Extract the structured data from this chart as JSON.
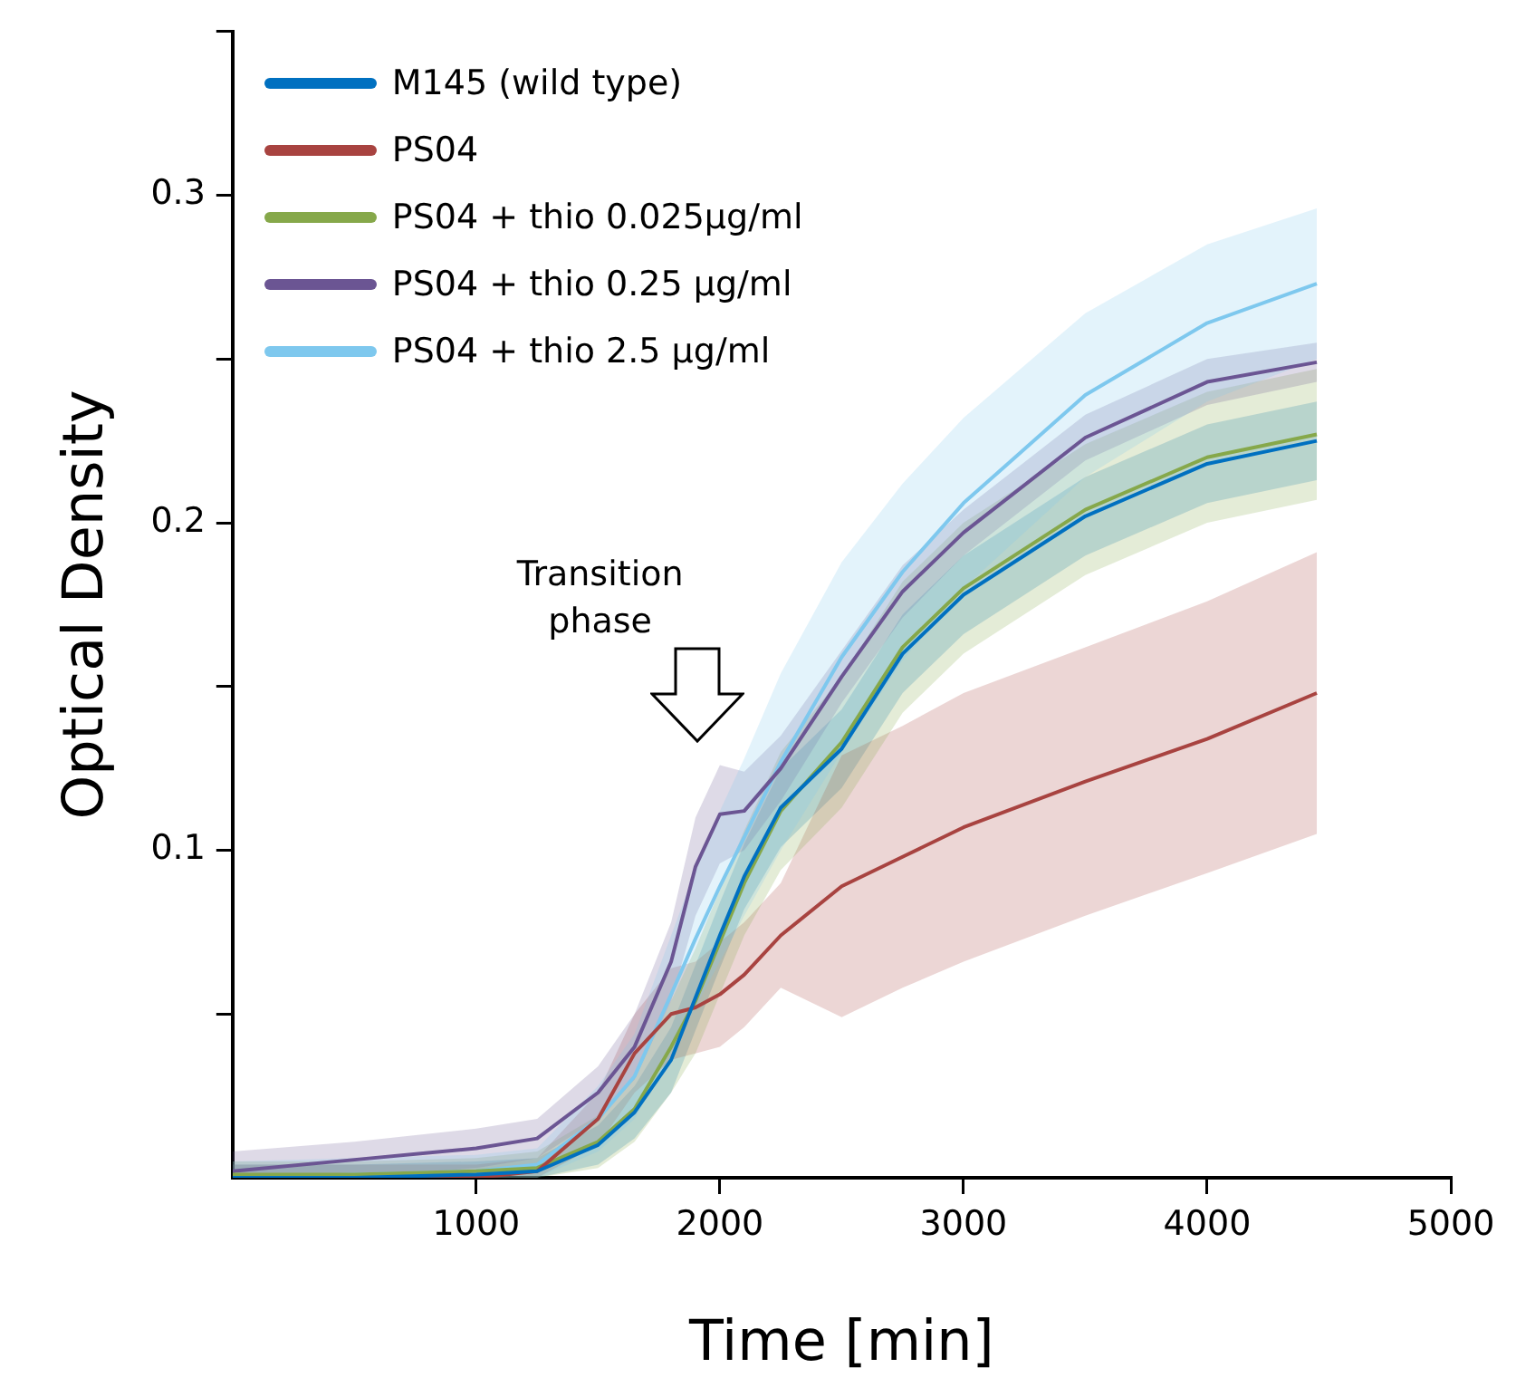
{
  "chart_data": {
    "type": "line",
    "xlabel": "Time [min]",
    "ylabel": "Optical Density",
    "x": [
      0,
      500,
      1000,
      1250,
      1500,
      1650,
      1800,
      1900,
      2000,
      2100,
      2250,
      2500,
      2750,
      3000,
      3500,
      4000,
      4450
    ],
    "xlim": [
      0,
      5000
    ],
    "xticks": [
      1000,
      2000,
      3000,
      4000,
      5000
    ],
    "ylim": [
      0,
      0.35
    ],
    "yticks": [
      {
        "value": 0.05,
        "label": null
      },
      0.1,
      {
        "value": 0.15,
        "label": null
      },
      0.2,
      {
        "value": 0.25,
        "label": null
      },
      0.3,
      {
        "value": 0.35,
        "label": null
      }
    ],
    "grid": false,
    "legend": "top left",
    "marker": "none",
    "line_style": "solid",
    "annotations": [
      "Transition phase"
    ],
    "series": [
      {
        "name": "M145 (wild type)",
        "color": "#0070c0",
        "values": [
          0,
          0,
          0.001,
          0.002,
          0.01,
          0.02,
          0.036,
          0.055,
          0.074,
          0.092,
          0.113,
          0.131,
          0.16,
          0.178,
          0.202,
          0.218,
          0.225
        ],
        "lower": [
          0,
          0,
          0,
          0,
          0.004,
          0.012,
          0.026,
          0.045,
          0.064,
          0.082,
          0.101,
          0.119,
          0.148,
          0.166,
          0.19,
          0.206,
          0.213
        ],
        "upper": [
          0.004,
          0.004,
          0.005,
          0.006,
          0.016,
          0.028,
          0.046,
          0.065,
          0.084,
          0.102,
          0.125,
          0.143,
          0.172,
          0.19,
          0.214,
          0.23,
          0.237
        ]
      },
      {
        "name": "PS04",
        "color": "#a84340",
        "values": [
          0,
          0,
          0,
          0.002,
          0.018,
          0.038,
          0.05,
          0.052,
          0.056,
          0.062,
          0.074,
          0.089,
          0.098,
          0.107,
          0.121,
          0.134,
          0.148
        ],
        "lower": [
          0,
          0,
          0,
          0,
          0.01,
          0.026,
          0.036,
          0.038,
          0.04,
          0.046,
          0.058,
          0.049,
          0.058,
          0.066,
          0.08,
          0.093,
          0.105
        ],
        "upper": [
          0.004,
          0.004,
          0.004,
          0.006,
          0.026,
          0.05,
          0.064,
          0.066,
          0.072,
          0.078,
          0.09,
          0.129,
          0.138,
          0.148,
          0.162,
          0.176,
          0.191
        ]
      },
      {
        "name": "PS04 + thio 0.025µg/ml",
        "color": "#86a84a",
        "values": [
          0.001,
          0.001,
          0.002,
          0.003,
          0.011,
          0.021,
          0.04,
          0.054,
          0.072,
          0.09,
          0.112,
          0.133,
          0.162,
          0.18,
          0.204,
          0.22,
          0.227
        ],
        "lower": [
          0,
          0,
          0,
          0,
          0.003,
          0.011,
          0.026,
          0.038,
          0.056,
          0.074,
          0.094,
          0.113,
          0.142,
          0.16,
          0.184,
          0.2,
          0.207
        ],
        "upper": [
          0.005,
          0.005,
          0.006,
          0.008,
          0.019,
          0.031,
          0.054,
          0.07,
          0.088,
          0.106,
          0.13,
          0.153,
          0.182,
          0.2,
          0.224,
          0.24,
          0.247
        ]
      },
      {
        "name": "PS04 + thio 0.25 µg/ml",
        "color": "#6b5593",
        "values": [
          0.002,
          0.0055,
          0.009,
          0.012,
          0.026,
          0.04,
          0.066,
          0.095,
          0.111,
          0.112,
          0.125,
          0.153,
          0.179,
          0.197,
          0.226,
          0.243,
          0.249
        ],
        "lower": [
          0,
          0,
          0.003,
          0.006,
          0.018,
          0.03,
          0.054,
          0.08,
          0.096,
          0.1,
          0.115,
          0.145,
          0.171,
          0.19,
          0.219,
          0.236,
          0.243
        ],
        "upper": [
          0.008,
          0.011,
          0.015,
          0.018,
          0.034,
          0.05,
          0.078,
          0.11,
          0.126,
          0.124,
          0.135,
          0.161,
          0.187,
          0.204,
          0.233,
          0.25,
          0.255
        ]
      },
      {
        "name": "PS04 + thio 2.5 µg/ml",
        "color": "#7ec8ee",
        "values": [
          0,
          0.001,
          0.002,
          0.004,
          0.018,
          0.031,
          0.056,
          0.073,
          0.089,
          0.104,
          0.127,
          0.159,
          0.185,
          0.206,
          0.239,
          0.261,
          0.273
        ],
        "lower": [
          0,
          0,
          0,
          0,
          0.008,
          0.018,
          0.038,
          0.052,
          0.066,
          0.08,
          0.1,
          0.13,
          0.158,
          0.18,
          0.214,
          0.237,
          0.25
        ],
        "upper": [
          0.005,
          0.006,
          0.007,
          0.009,
          0.028,
          0.044,
          0.074,
          0.094,
          0.112,
          0.128,
          0.154,
          0.188,
          0.212,
          0.232,
          0.264,
          0.285,
          0.296
        ]
      }
    ]
  }
}
